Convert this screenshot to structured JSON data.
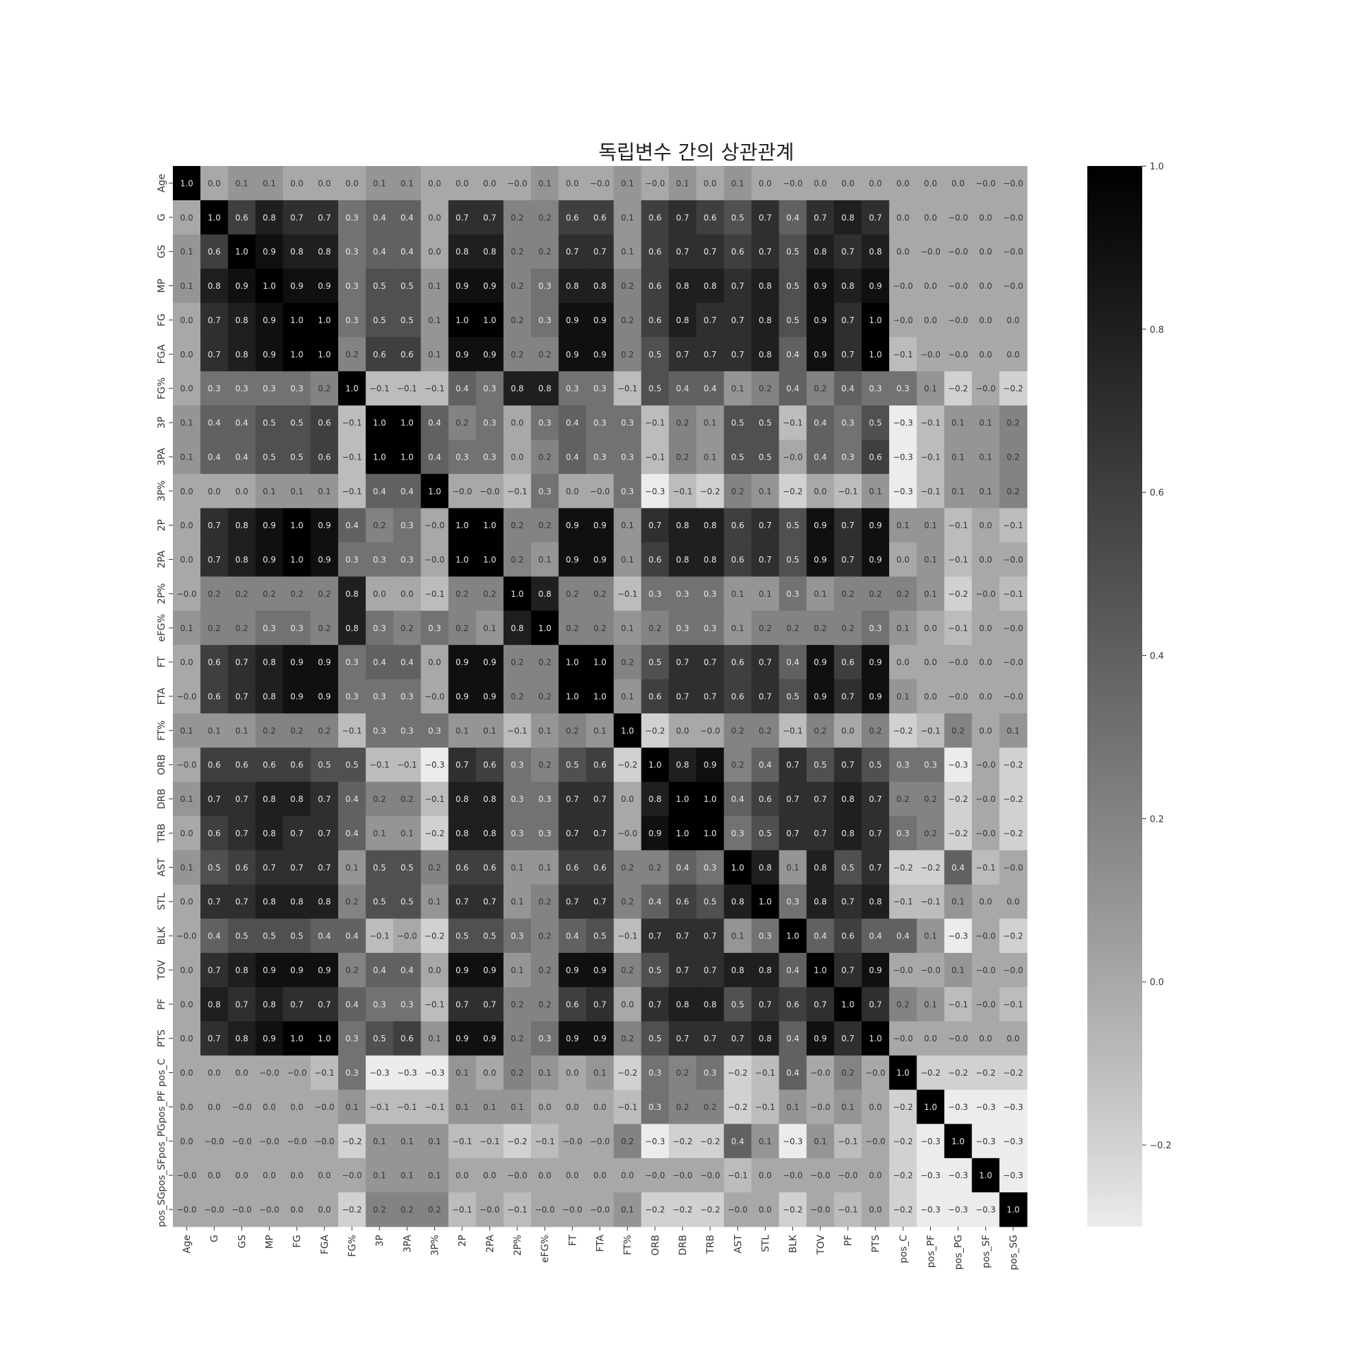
{
  "chart_data": {
    "type": "heatmap",
    "title": "독립변수 간의 상관관계",
    "colormap": "Greys",
    "vmin": -0.3,
    "vmax": 1.0,
    "labels": [
      "Age",
      "G",
      "GS",
      "MP",
      "FG",
      "FGA",
      "FG%",
      "3P",
      "3PA",
      "3P%",
      "2P",
      "2PA",
      "2P%",
      "eFG%",
      "FT",
      "FTA",
      "FT%",
      "ORB",
      "DRB",
      "TRB",
      "AST",
      "STL",
      "BLK",
      "TOV",
      "PF",
      "PTS",
      "pos_C",
      "pos_PF",
      "pos_PG",
      "pos_SF",
      "pos_SG"
    ],
    "matrix": [
      [
        "1.0",
        "0.0",
        "0.1",
        "0.1",
        "0.0",
        "0.0",
        "0.0",
        "0.1",
        "0.1",
        "0.0",
        "0.0",
        "0.0",
        "-0.0",
        "0.1",
        "0.0",
        "-0.0",
        "0.1",
        "-0.0",
        "0.1",
        "0.0",
        "0.1",
        "0.0",
        "-0.0",
        "0.0",
        "0.0",
        "0.0",
        "0.0",
        "0.0",
        "0.0",
        "-0.0",
        "-0.0"
      ],
      [
        "0.0",
        "1.0",
        "0.6",
        "0.8",
        "0.7",
        "0.7",
        "0.3",
        "0.4",
        "0.4",
        "0.0",
        "0.7",
        "0.7",
        "0.2",
        "0.2",
        "0.6",
        "0.6",
        "0.1",
        "0.6",
        "0.7",
        "0.6",
        "0.5",
        "0.7",
        "0.4",
        "0.7",
        "0.8",
        "0.7",
        "0.0",
        "0.0",
        "-0.0",
        "0.0",
        "-0.0"
      ],
      [
        "0.1",
        "0.6",
        "1.0",
        "0.9",
        "0.8",
        "0.8",
        "0.3",
        "0.4",
        "0.4",
        "0.0",
        "0.8",
        "0.8",
        "0.2",
        "0.2",
        "0.7",
        "0.7",
        "0.1",
        "0.6",
        "0.7",
        "0.7",
        "0.6",
        "0.7",
        "0.5",
        "0.8",
        "0.7",
        "0.8",
        "0.0",
        "-0.0",
        "-0.0",
        "0.0",
        "-0.0"
      ],
      [
        "0.1",
        "0.8",
        "0.9",
        "1.0",
        "0.9",
        "0.9",
        "0.3",
        "0.5",
        "0.5",
        "0.1",
        "0.9",
        "0.9",
        "0.2",
        "0.3",
        "0.8",
        "0.8",
        "0.2",
        "0.6",
        "0.8",
        "0.8",
        "0.7",
        "0.8",
        "0.5",
        "0.9",
        "0.8",
        "0.9",
        "-0.0",
        "0.0",
        "-0.0",
        "0.0",
        "-0.0"
      ],
      [
        "0.0",
        "0.7",
        "0.8",
        "0.9",
        "1.0",
        "1.0",
        "0.3",
        "0.5",
        "0.5",
        "0.1",
        "1.0",
        "1.0",
        "0.2",
        "0.3",
        "0.9",
        "0.9",
        "0.2",
        "0.6",
        "0.8",
        "0.7",
        "0.7",
        "0.8",
        "0.5",
        "0.9",
        "0.7",
        "1.0",
        "-0.0",
        "0.0",
        "-0.0",
        "0.0",
        "0.0"
      ],
      [
        "0.0",
        "0.7",
        "0.8",
        "0.9",
        "1.0",
        "1.0",
        "0.2",
        "0.6",
        "0.6",
        "0.1",
        "0.9",
        "0.9",
        "0.2",
        "0.2",
        "0.9",
        "0.9",
        "0.2",
        "0.5",
        "0.7",
        "0.7",
        "0.7",
        "0.8",
        "0.4",
        "0.9",
        "0.7",
        "1.0",
        "-0.1",
        "-0.0",
        "-0.0",
        "0.0",
        "0.0"
      ],
      [
        "0.0",
        "0.3",
        "0.3",
        "0.3",
        "0.3",
        "0.2",
        "1.0",
        "-0.1",
        "-0.1",
        "-0.1",
        "0.4",
        "0.3",
        "0.8",
        "0.8",
        "0.3",
        "0.3",
        "-0.1",
        "0.5",
        "0.4",
        "0.4",
        "0.1",
        "0.2",
        "0.4",
        "0.2",
        "0.4",
        "0.3",
        "0.3",
        "0.1",
        "-0.2",
        "-0.0",
        "-0.2"
      ],
      [
        "0.1",
        "0.4",
        "0.4",
        "0.5",
        "0.5",
        "0.6",
        "-0.1",
        "1.0",
        "1.0",
        "0.4",
        "0.2",
        "0.3",
        "0.0",
        "0.3",
        "0.4",
        "0.3",
        "0.3",
        "-0.1",
        "0.2",
        "0.1",
        "0.5",
        "0.5",
        "-0.1",
        "0.4",
        "0.3",
        "0.5",
        "-0.3",
        "-0.1",
        "0.1",
        "0.1",
        "0.2"
      ],
      [
        "0.1",
        "0.4",
        "0.4",
        "0.5",
        "0.5",
        "0.6",
        "-0.1",
        "1.0",
        "1.0",
        "0.4",
        "0.3",
        "0.3",
        "0.0",
        "0.2",
        "0.4",
        "0.3",
        "0.3",
        "-0.1",
        "0.2",
        "0.1",
        "0.5",
        "0.5",
        "-0.0",
        "0.4",
        "0.3",
        "0.6",
        "-0.3",
        "-0.1",
        "0.1",
        "0.1",
        "0.2"
      ],
      [
        "0.0",
        "0.0",
        "0.0",
        "0.1",
        "0.1",
        "0.1",
        "-0.1",
        "0.4",
        "0.4",
        "1.0",
        "-0.0",
        "-0.0",
        "-0.1",
        "0.3",
        "0.0",
        "-0.0",
        "0.3",
        "-0.3",
        "-0.1",
        "-0.2",
        "0.2",
        "0.1",
        "-0.2",
        "0.0",
        "-0.1",
        "0.1",
        "-0.3",
        "-0.1",
        "0.1",
        "0.1",
        "0.2"
      ],
      [
        "0.0",
        "0.7",
        "0.8",
        "0.9",
        "1.0",
        "0.9",
        "0.4",
        "0.2",
        "0.3",
        "-0.0",
        "1.0",
        "1.0",
        "0.2",
        "0.2",
        "0.9",
        "0.9",
        "0.1",
        "0.7",
        "0.8",
        "0.8",
        "0.6",
        "0.7",
        "0.5",
        "0.9",
        "0.7",
        "0.9",
        "0.1",
        "0.1",
        "-0.1",
        "0.0",
        "-0.1"
      ],
      [
        "0.0",
        "0.7",
        "0.8",
        "0.9",
        "1.0",
        "0.9",
        "0.3",
        "0.3",
        "0.3",
        "-0.0",
        "1.0",
        "1.0",
        "0.2",
        "0.1",
        "0.9",
        "0.9",
        "0.1",
        "0.6",
        "0.8",
        "0.8",
        "0.6",
        "0.7",
        "0.5",
        "0.9",
        "0.7",
        "0.9",
        "0.0",
        "0.1",
        "-0.1",
        "0.0",
        "-0.0"
      ],
      [
        "-0.0",
        "0.2",
        "0.2",
        "0.2",
        "0.2",
        "0.2",
        "0.8",
        "0.0",
        "0.0",
        "-0.1",
        "0.2",
        "0.2",
        "1.0",
        "0.8",
        "0.2",
        "0.2",
        "-0.1",
        "0.3",
        "0.3",
        "0.3",
        "0.1",
        "0.1",
        "0.3",
        "0.1",
        "0.2",
        "0.2",
        "0.2",
        "0.1",
        "-0.2",
        "-0.0",
        "-0.1"
      ],
      [
        "0.1",
        "0.2",
        "0.2",
        "0.3",
        "0.3",
        "0.2",
        "0.8",
        "0.3",
        "0.2",
        "0.3",
        "0.2",
        "0.1",
        "0.8",
        "1.0",
        "0.2",
        "0.2",
        "0.1",
        "0.2",
        "0.3",
        "0.3",
        "0.1",
        "0.2",
        "0.2",
        "0.2",
        "0.2",
        "0.3",
        "0.1",
        "0.0",
        "-0.1",
        "0.0",
        "-0.0"
      ],
      [
        "0.0",
        "0.6",
        "0.7",
        "0.8",
        "0.9",
        "0.9",
        "0.3",
        "0.4",
        "0.4",
        "0.0",
        "0.9",
        "0.9",
        "0.2",
        "0.2",
        "1.0",
        "1.0",
        "0.2",
        "0.5",
        "0.7",
        "0.7",
        "0.6",
        "0.7",
        "0.4",
        "0.9",
        "0.6",
        "0.9",
        "0.0",
        "0.0",
        "-0.0",
        "0.0",
        "-0.0"
      ],
      [
        "-0.0",
        "0.6",
        "0.7",
        "0.8",
        "0.9",
        "0.9",
        "0.3",
        "0.3",
        "0.3",
        "-0.0",
        "0.9",
        "0.9",
        "0.2",
        "0.2",
        "1.0",
        "1.0",
        "0.1",
        "0.6",
        "0.7",
        "0.7",
        "0.6",
        "0.7",
        "0.5",
        "0.9",
        "0.7",
        "0.9",
        "0.1",
        "0.0",
        "-0.0",
        "0.0",
        "-0.0"
      ],
      [
        "0.1",
        "0.1",
        "0.1",
        "0.2",
        "0.2",
        "0.2",
        "-0.1",
        "0.3",
        "0.3",
        "0.3",
        "0.1",
        "0.1",
        "-0.1",
        "0.1",
        "0.2",
        "0.1",
        "1.0",
        "-0.2",
        "0.0",
        "-0.0",
        "0.2",
        "0.2",
        "-0.1",
        "0.2",
        "0.0",
        "0.2",
        "-0.2",
        "-0.1",
        "0.2",
        "0.0",
        "0.1"
      ],
      [
        "-0.0",
        "0.6",
        "0.6",
        "0.6",
        "0.6",
        "0.5",
        "0.5",
        "-0.1",
        "-0.1",
        "-0.3",
        "0.7",
        "0.6",
        "0.3",
        "0.2",
        "0.5",
        "0.6",
        "-0.2",
        "1.0",
        "0.8",
        "0.9",
        "0.2",
        "0.4",
        "0.7",
        "0.5",
        "0.7",
        "0.5",
        "0.3",
        "0.3",
        "-0.3",
        "-0.0",
        "-0.2"
      ],
      [
        "0.1",
        "0.7",
        "0.7",
        "0.8",
        "0.8",
        "0.7",
        "0.4",
        "0.2",
        "0.2",
        "-0.1",
        "0.8",
        "0.8",
        "0.3",
        "0.3",
        "0.7",
        "0.7",
        "0.0",
        "0.8",
        "1.0",
        "1.0",
        "0.4",
        "0.6",
        "0.7",
        "0.7",
        "0.8",
        "0.7",
        "0.2",
        "0.2",
        "-0.2",
        "-0.0",
        "-0.2"
      ],
      [
        "0.0",
        "0.6",
        "0.7",
        "0.8",
        "0.7",
        "0.7",
        "0.4",
        "0.1",
        "0.1",
        "-0.2",
        "0.8",
        "0.8",
        "0.3",
        "0.3",
        "0.7",
        "0.7",
        "-0.0",
        "0.9",
        "1.0",
        "1.0",
        "0.3",
        "0.5",
        "0.7",
        "0.7",
        "0.8",
        "0.7",
        "0.3",
        "0.2",
        "-0.2",
        "-0.0",
        "-0.2"
      ],
      [
        "0.1",
        "0.5",
        "0.6",
        "0.7",
        "0.7",
        "0.7",
        "0.1",
        "0.5",
        "0.5",
        "0.2",
        "0.6",
        "0.6",
        "0.1",
        "0.1",
        "0.6",
        "0.6",
        "0.2",
        "0.2",
        "0.4",
        "0.3",
        "1.0",
        "0.8",
        "0.1",
        "0.8",
        "0.5",
        "0.7",
        "-0.2",
        "-0.2",
        "0.4",
        "-0.1",
        "-0.0"
      ],
      [
        "0.0",
        "0.7",
        "0.7",
        "0.8",
        "0.8",
        "0.8",
        "0.2",
        "0.5",
        "0.5",
        "0.1",
        "0.7",
        "0.7",
        "0.1",
        "0.2",
        "0.7",
        "0.7",
        "0.2",
        "0.4",
        "0.6",
        "0.5",
        "0.8",
        "1.0",
        "0.3",
        "0.8",
        "0.7",
        "0.8",
        "-0.1",
        "-0.1",
        "0.1",
        "0.0",
        "0.0"
      ],
      [
        "-0.0",
        "0.4",
        "0.5",
        "0.5",
        "0.5",
        "0.4",
        "0.4",
        "-0.1",
        "-0.0",
        "-0.2",
        "0.5",
        "0.5",
        "0.3",
        "0.2",
        "0.4",
        "0.5",
        "-0.1",
        "0.7",
        "0.7",
        "0.7",
        "0.1",
        "0.3",
        "1.0",
        "0.4",
        "0.6",
        "0.4",
        "0.4",
        "0.1",
        "-0.3",
        "-0.0",
        "-0.2"
      ],
      [
        "0.0",
        "0.7",
        "0.8",
        "0.9",
        "0.9",
        "0.9",
        "0.2",
        "0.4",
        "0.4",
        "0.0",
        "0.9",
        "0.9",
        "0.1",
        "0.2",
        "0.9",
        "0.9",
        "0.2",
        "0.5",
        "0.7",
        "0.7",
        "0.8",
        "0.8",
        "0.4",
        "1.0",
        "0.7",
        "0.9",
        "-0.0",
        "-0.0",
        "0.1",
        "-0.0",
        "-0.0"
      ],
      [
        "0.0",
        "0.8",
        "0.7",
        "0.8",
        "0.7",
        "0.7",
        "0.4",
        "0.3",
        "0.3",
        "-0.1",
        "0.7",
        "0.7",
        "0.2",
        "0.2",
        "0.6",
        "0.7",
        "0.0",
        "0.7",
        "0.8",
        "0.8",
        "0.5",
        "0.7",
        "0.6",
        "0.7",
        "1.0",
        "0.7",
        "0.2",
        "0.1",
        "-0.1",
        "-0.0",
        "-0.1"
      ],
      [
        "0.0",
        "0.7",
        "0.8",
        "0.9",
        "1.0",
        "1.0",
        "0.3",
        "0.5",
        "0.6",
        "0.1",
        "0.9",
        "0.9",
        "0.2",
        "0.3",
        "0.9",
        "0.9",
        "0.2",
        "0.5",
        "0.7",
        "0.7",
        "0.7",
        "0.8",
        "0.4",
        "0.9",
        "0.7",
        "1.0",
        "-0.0",
        "0.0",
        "-0.0",
        "0.0",
        "0.0"
      ],
      [
        "0.0",
        "0.0",
        "0.0",
        "-0.0",
        "-0.0",
        "-0.1",
        "0.3",
        "-0.3",
        "-0.3",
        "-0.3",
        "0.1",
        "0.0",
        "0.2",
        "0.1",
        "0.0",
        "0.1",
        "-0.2",
        "0.3",
        "0.2",
        "0.3",
        "-0.2",
        "-0.1",
        "0.4",
        "-0.0",
        "0.2",
        "-0.0",
        "1.0",
        "-0.2",
        "-0.2",
        "-0.2",
        "-0.2"
      ],
      [
        "0.0",
        "0.0",
        "-0.0",
        "0.0",
        "0.0",
        "-0.0",
        "0.1",
        "-0.1",
        "-0.1",
        "-0.1",
        "0.1",
        "0.1",
        "0.1",
        "0.0",
        "0.0",
        "0.0",
        "-0.1",
        "0.3",
        "0.2",
        "0.2",
        "-0.2",
        "-0.1",
        "0.1",
        "-0.0",
        "0.1",
        "0.0",
        "-0.2",
        "1.0",
        "-0.3",
        "-0.3",
        "-0.3"
      ],
      [
        "0.0",
        "-0.0",
        "-0.0",
        "-0.0",
        "-0.0",
        "-0.0",
        "-0.2",
        "0.1",
        "0.1",
        "0.1",
        "-0.1",
        "-0.1",
        "-0.2",
        "-0.1",
        "-0.0",
        "-0.0",
        "0.2",
        "-0.3",
        "-0.2",
        "-0.2",
        "0.4",
        "0.1",
        "-0.3",
        "0.1",
        "-0.1",
        "-0.0",
        "-0.2",
        "-0.3",
        "1.0",
        "-0.3",
        "-0.3"
      ],
      [
        "-0.0",
        "0.0",
        "0.0",
        "0.0",
        "0.0",
        "0.0",
        "-0.0",
        "0.1",
        "0.1",
        "0.1",
        "0.0",
        "0.0",
        "-0.0",
        "0.0",
        "0.0",
        "0.0",
        "0.0",
        "-0.0",
        "-0.0",
        "-0.0",
        "-0.1",
        "0.0",
        "-0.0",
        "-0.0",
        "-0.0",
        "0.0",
        "-0.2",
        "-0.3",
        "-0.3",
        "1.0",
        "-0.3"
      ],
      [
        "-0.0",
        "-0.0",
        "-0.0",
        "-0.0",
        "0.0",
        "0.0",
        "-0.2",
        "0.2",
        "0.2",
        "0.2",
        "-0.1",
        "-0.0",
        "-0.1",
        "-0.0",
        "-0.0",
        "-0.0",
        "0.1",
        "-0.2",
        "-0.2",
        "-0.2",
        "-0.0",
        "0.0",
        "-0.2",
        "-0.0",
        "-0.1",
        "0.0",
        "-0.2",
        "-0.3",
        "-0.3",
        "-0.3",
        "1.0"
      ]
    ],
    "colorbar_ticks": [
      "1.0",
      "0.8",
      "0.6",
      "0.4",
      "0.2",
      "0.0",
      "−0.2"
    ]
  }
}
